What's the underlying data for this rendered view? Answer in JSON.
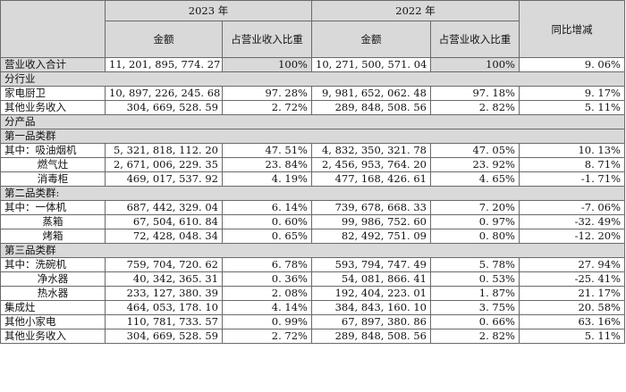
{
  "header": {
    "year_2023": "2023 年",
    "year_2022": "2022 年",
    "amount": "金额",
    "ratio": "占营业收入比重",
    "yoy": "同比增减"
  },
  "total": {
    "label": "营业收入合计",
    "a2023": "11, 201, 895, 774. 27",
    "p2023": "100%",
    "a2022": "10, 271, 500, 571. 04",
    "p2022": "100%",
    "yoy": "9. 06%"
  },
  "sections": {
    "by_industry": "分行业",
    "by_product": "分产品"
  },
  "industry_rows": [
    {
      "label": "家电厨卫",
      "a2023": "10, 897, 226, 245. 68",
      "p2023": "97. 28%",
      "a2022": "9, 981, 652, 062. 48",
      "p2022": "97. 18%",
      "yoy": "9. 17%"
    },
    {
      "label": "其他业务收入",
      "a2023": "304, 669, 528. 59",
      "p2023": "2. 72%",
      "a2022": "289, 848, 508. 56",
      "p2022": "2. 82%",
      "yoy": "5. 11%"
    }
  ],
  "groups": {
    "g1": "第一品类群",
    "g2": "第二品类群:",
    "g3": "第三品类群"
  },
  "product_rows": [
    {
      "label": "其中：吸油烟机",
      "a2023": "5, 321, 818, 112. 20",
      "p2023": "47. 51%",
      "a2022": "4, 832, 350, 321. 78",
      "p2022": "47. 05%",
      "yoy": "10. 13%"
    },
    {
      "label": "燃气灶",
      "a2023": "2, 671, 006, 229. 35",
      "p2023": "23. 84%",
      "a2022": "2, 456, 953, 764. 20",
      "p2022": "23. 92%",
      "yoy": "8. 71%"
    },
    {
      "label": "消毒柜",
      "a2023": "469, 017, 537. 92",
      "p2023": "4. 19%",
      "a2022": "477, 168, 426. 61",
      "p2022": "4. 65%",
      "yoy": "-1. 71%"
    },
    {
      "label": "其中：一体机",
      "a2023": "687, 442, 329. 04",
      "p2023": "6. 14%",
      "a2022": "739, 678, 668. 33",
      "p2022": "7. 20%",
      "yoy": "-7. 06%"
    },
    {
      "label": "蒸箱",
      "a2023": "67, 504, 610. 84",
      "p2023": "0. 60%",
      "a2022": "99, 986, 752. 60",
      "p2022": "0. 97%",
      "yoy": "-32. 49%"
    },
    {
      "label": "烤箱",
      "a2023": "72, 428, 048. 34",
      "p2023": "0. 65%",
      "a2022": "82, 492, 751. 09",
      "p2022": "0. 80%",
      "yoy": "-12. 20%"
    },
    {
      "label": "其中：洗碗机",
      "a2023": "759, 704, 720. 62",
      "p2023": "6. 78%",
      "a2022": "593, 794, 747. 49",
      "p2022": "5. 78%",
      "yoy": "27. 94%"
    },
    {
      "label": "净水器",
      "a2023": "40, 342, 365. 31",
      "p2023": "0. 36%",
      "a2022": "54, 081, 866. 41",
      "p2022": "0. 53%",
      "yoy": "-25. 41%"
    },
    {
      "label": "热水器",
      "a2023": "233, 127, 380. 39",
      "p2023": "2. 08%",
      "a2022": "192, 404, 223. 01",
      "p2022": "1. 87%",
      "yoy": "21. 17%"
    },
    {
      "label": "集成灶",
      "a2023": "464, 053, 178. 10",
      "p2023": "4. 14%",
      "a2022": "384, 843, 160. 10",
      "p2022": "3. 75%",
      "yoy": "20. 58%"
    },
    {
      "label": "其他小家电",
      "a2023": "110, 781, 733. 57",
      "p2023": "0. 99%",
      "a2022": "67, 897, 380. 86",
      "p2022": "0. 66%",
      "yoy": "63. 16%"
    },
    {
      "label": "其他业务收入",
      "a2023": "304, 669, 528. 59",
      "p2023": "2. 72%",
      "a2022": "289, 848, 508. 56",
      "p2022": "2. 82%",
      "yoy": "5. 11%"
    }
  ]
}
